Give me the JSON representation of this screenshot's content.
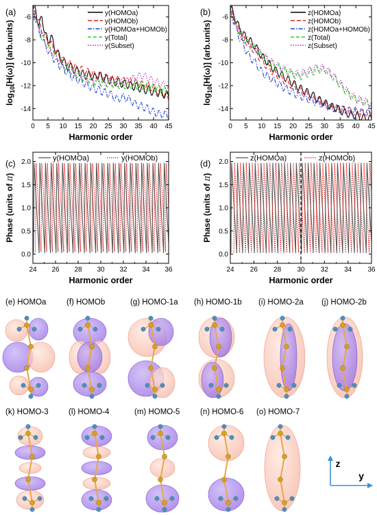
{
  "chart_data": [
    {
      "panel": "(a)",
      "type": "line",
      "xlabel": "Harmonic order",
      "ylabel_main": "log",
      "ylabel_sub": "10",
      "ylabel_tail": "[H(ω)] (arb.units)",
      "xlim": [
        0,
        45
      ],
      "ylim": [
        -15,
        -5
      ],
      "xticks": [
        0,
        5,
        10,
        15,
        20,
        25,
        30,
        35,
        40,
        45
      ],
      "yticks": [
        -14,
        -12,
        -10,
        -8,
        -6
      ],
      "series": [
        {
          "name": "y(HOMOa)",
          "color": "#000000",
          "dash": "",
          "x": [
            0,
            1,
            2,
            3,
            4,
            5,
            6,
            7,
            8,
            9,
            10,
            11,
            12,
            13,
            14,
            15,
            16,
            17,
            18,
            19,
            20,
            21,
            22,
            23,
            24,
            25,
            26,
            27,
            28,
            29,
            30,
            31,
            32,
            33,
            34,
            35,
            36,
            37,
            38,
            39,
            40,
            41,
            42,
            43,
            44,
            45
          ],
          "y": [
            -5,
            -5.5,
            -6.8,
            -6.0,
            -7.4,
            -8.2,
            -7.6,
            -8.6,
            -9.0,
            -9.6,
            -9.8,
            -10.2,
            -10.4,
            -10.3,
            -10.8,
            -10.6,
            -11.0,
            -11.0,
            -11.2,
            -11.0,
            -11.3,
            -11.2,
            -11.0,
            -11.4,
            -11.2,
            -11.6,
            -11.4,
            -11.8,
            -11.5,
            -11.9,
            -11.7,
            -12.0,
            -11.8,
            -12.2,
            -11.9,
            -12.3,
            -12.1,
            -12.5,
            -12.2,
            -12.6,
            -12.4,
            -12.7,
            -12.5,
            -12.8,
            -12.7,
            -13.0
          ]
        },
        {
          "name": "y(HOMOb)",
          "color": "#e11b1b",
          "dash": "6,3",
          "x": [
            0,
            2,
            4,
            6,
            8,
            10,
            12,
            14,
            16,
            18,
            20,
            22,
            24,
            26,
            28,
            30,
            32,
            34,
            36,
            38,
            40,
            42,
            44,
            45
          ],
          "y": [
            -5.2,
            -6.5,
            -7.8,
            -8.4,
            -9.2,
            -9.8,
            -10.1,
            -10.4,
            -10.6,
            -10.8,
            -11.0,
            -11.1,
            -11.3,
            -11.4,
            -11.5,
            -11.6,
            -11.6,
            -11.7,
            -11.9,
            -12.0,
            -12.2,
            -12.6,
            -12.8,
            -13.0
          ]
        },
        {
          "name": "y(HOMOa+HOMOb)",
          "color": "#1f3fd0",
          "dash": "6,2,1.5,2",
          "x": [
            0,
            2,
            4,
            6,
            8,
            10,
            12,
            14,
            16,
            18,
            20,
            22,
            24,
            26,
            28,
            30,
            32,
            34,
            36,
            38,
            40,
            42,
            44,
            45
          ],
          "y": [
            -5.3,
            -7.0,
            -8.5,
            -9.3,
            -10.0,
            -10.5,
            -11.0,
            -11.4,
            -11.6,
            -12.0,
            -12.2,
            -12.4,
            -12.6,
            -12.8,
            -13.2,
            -13.0,
            -13.2,
            -13.6,
            -13.8,
            -14.0,
            -14.3,
            -14.5,
            -14.5,
            -14.6
          ]
        },
        {
          "name": "y(Total)",
          "color": "#21d321",
          "dash": "5,3",
          "x": [
            0,
            2,
            4,
            6,
            8,
            10,
            12,
            14,
            16,
            18,
            20,
            22,
            24,
            26,
            28,
            30,
            32,
            34,
            36,
            38,
            40,
            42,
            44,
            45
          ],
          "y": [
            -5.6,
            -7.2,
            -8.2,
            -9.0,
            -9.6,
            -10.2,
            -10.6,
            -10.9,
            -11.2,
            -11.4,
            -11.6,
            -11.7,
            -11.8,
            -11.8,
            -11.9,
            -12.0,
            -11.9,
            -12.0,
            -12.0,
            -12.1,
            -12.2,
            -12.3,
            -12.4,
            -12.5
          ]
        },
        {
          "name": "y(Subset)",
          "color": "#c51cc5",
          "dash": "1.5,2",
          "x": [
            0,
            2,
            4,
            6,
            8,
            10,
            12,
            14,
            16,
            18,
            20,
            22,
            24,
            26,
            28,
            30,
            32,
            34,
            36,
            38,
            40,
            42,
            44,
            45
          ],
          "y": [
            -5.5,
            -7.1,
            -8.1,
            -8.9,
            -9.5,
            -10.1,
            -10.5,
            -10.8,
            -11.1,
            -11.3,
            -11.5,
            -11.6,
            -11.7,
            -11.7,
            -11.8,
            -11.8,
            -11.5,
            -11.3,
            -11.1,
            -11.3,
            -11.6,
            -11.8,
            -12.0,
            -12.2
          ]
        }
      ]
    },
    {
      "panel": "(b)",
      "type": "line",
      "xlabel": "Harmonic order",
      "ylabel_main": "log",
      "ylabel_sub": "10",
      "ylabel_tail": "[H(ω)] (arb.units)",
      "xlim": [
        0,
        45
      ],
      "ylim": [
        -15,
        -5
      ],
      "xticks": [
        0,
        5,
        10,
        15,
        20,
        25,
        30,
        35,
        40,
        45
      ],
      "yticks": [
        -14,
        -12,
        -10,
        -8,
        -6
      ],
      "series": [
        {
          "name": "z(HOMOa)",
          "color": "#000000",
          "dash": "",
          "x": [
            0,
            2,
            4,
            6,
            8,
            10,
            12,
            14,
            16,
            18,
            20,
            22,
            24,
            26,
            28,
            30,
            32,
            34,
            36,
            38,
            40,
            42,
            44,
            45
          ],
          "y": [
            -5.0,
            -6.5,
            -7.5,
            -8.0,
            -8.6,
            -9.4,
            -10.0,
            -10.6,
            -11.0,
            -11.4,
            -11.8,
            -12.2,
            -12.5,
            -12.8,
            -13.2,
            -13.5,
            -13.8,
            -14.0,
            -14.3,
            -14.5,
            -14.6,
            -14.8,
            -14.9,
            -14.9
          ]
        },
        {
          "name": "z(HOMOb)",
          "color": "#e11b1b",
          "dash": "6,3",
          "x": [
            0,
            2,
            4,
            6,
            8,
            10,
            12,
            14,
            16,
            18,
            20,
            22,
            24,
            26,
            28,
            30,
            32,
            34,
            36,
            38,
            40,
            42,
            44,
            45
          ],
          "y": [
            -5.2,
            -6.8,
            -7.8,
            -8.4,
            -9.0,
            -9.8,
            -10.4,
            -10.9,
            -11.3,
            -11.7,
            -12.0,
            -12.4,
            -12.7,
            -13.0,
            -13.3,
            -13.6,
            -13.9,
            -14.0,
            -14.1,
            -14.3,
            -14.3,
            -14.4,
            -14.5,
            -14.5
          ]
        },
        {
          "name": "z(HOMOa+HOMOb)",
          "color": "#1f3fd0",
          "dash": "6,2,1.5,2",
          "x": [
            0,
            2,
            4,
            6,
            8,
            10,
            12,
            14,
            16,
            18,
            20,
            22,
            24,
            26,
            28,
            30,
            32,
            34,
            36,
            38,
            40,
            42,
            44,
            45
          ],
          "y": [
            -5.4,
            -7.2,
            -8.4,
            -9.4,
            -10.0,
            -10.8,
            -11.2,
            -11.6,
            -12.0,
            -12.3,
            -12.6,
            -12.9,
            -13.1,
            -13.3,
            -13.5,
            -13.7,
            -13.9,
            -14.0,
            -14.1,
            -14.2,
            -14.2,
            -14.3,
            -14.3,
            -14.3
          ]
        },
        {
          "name": "z(Total)",
          "color": "#21d321",
          "dash": "5,3",
          "x": [
            0,
            2,
            4,
            6,
            8,
            10,
            12,
            14,
            16,
            18,
            20,
            22,
            24,
            26,
            28,
            30,
            32,
            34,
            36,
            38,
            40,
            42,
            44,
            45
          ],
          "y": [
            -5.3,
            -6.8,
            -7.8,
            -8.4,
            -8.8,
            -9.4,
            -9.8,
            -10.2,
            -10.5,
            -10.8,
            -11.0,
            -11.2,
            -11.0,
            -10.8,
            -10.6,
            -10.6,
            -11.0,
            -11.6,
            -12.2,
            -12.8,
            -13.2,
            -13.4,
            -13.6,
            -13.6
          ]
        },
        {
          "name": "z(Subset)",
          "color": "#c51cc5",
          "dash": "1.5,2",
          "x": [
            0,
            2,
            4,
            6,
            8,
            10,
            12,
            14,
            16,
            18,
            20,
            22,
            24,
            26,
            28,
            30,
            32,
            34,
            36,
            38,
            40,
            42,
            44,
            45
          ],
          "y": [
            -5.2,
            -6.7,
            -7.7,
            -8.3,
            -8.7,
            -9.3,
            -9.7,
            -10.1,
            -10.4,
            -10.7,
            -10.9,
            -11.0,
            -10.8,
            -10.6,
            -10.4,
            -10.5,
            -10.9,
            -11.5,
            -12.1,
            -12.7,
            -13.1,
            -13.3,
            -13.5,
            -13.6
          ]
        }
      ]
    },
    {
      "panel": "(c)",
      "type": "line",
      "xlabel": "Harmonic order",
      "ylabel": "Phase (units of π)",
      "xlim": [
        24,
        36
      ],
      "ylim": [
        -0.2,
        2.2
      ],
      "xticks": [
        24,
        26,
        28,
        30,
        32,
        34,
        36
      ],
      "xticks_minor": [
        25,
        27,
        29,
        31,
        33,
        35
      ],
      "yticks": [
        0.0,
        0.5,
        1.0,
        1.5,
        2.0
      ],
      "series": [
        {
          "name": "y(HOMOa)",
          "color": "#555555",
          "dash": "",
          "period": 0.5,
          "x0": 24.05,
          "ymin": 0.02,
          "ymax": 1.97
        },
        {
          "name": "y(HOMOb)",
          "color": "#e11b1b",
          "dash": "1.5,1.5",
          "period": 0.5,
          "x0": 24.22,
          "ymin": 0.05,
          "ymax": 1.96
        }
      ]
    },
    {
      "panel": "(d)",
      "type": "line",
      "xlabel": "Harmonic order",
      "ylabel": "Phase (units of π)",
      "xlim": [
        24,
        36
      ],
      "ylim": [
        -0.2,
        2.2
      ],
      "xticks": [
        24,
        26,
        28,
        30,
        32,
        34,
        36
      ],
      "xticks_minor": [
        25,
        27,
        29,
        31,
        33,
        35
      ],
      "yticks": [
        0.0,
        0.5,
        1.0,
        1.5,
        2.0
      ],
      "vline": 30,
      "series": [
        {
          "name": "z(HOMOa)",
          "color": "#555555",
          "dash": "",
          "period": 0.5,
          "x0": 24.05,
          "ymin": 0.02,
          "ymax": 1.97
        },
        {
          "name": "z(HOMOb)",
          "color": "#e11b1b",
          "dash": "1.5,1.5",
          "period": 0.5,
          "x0": 24.3,
          "ymin": 0.03,
          "ymax": 1.97
        }
      ]
    }
  ],
  "orbitals": {
    "row1": [
      {
        "tag": "(e)",
        "name": "HOMOa",
        "shape": "p4"
      },
      {
        "tag": "(f)",
        "name": "HOMOb",
        "shape": "p4b"
      },
      {
        "tag": "(g)",
        "name": "HOMO-1a",
        "shape": "p2"
      },
      {
        "tag": "(h)",
        "name": "HOMO-1b",
        "shape": "p2b"
      },
      {
        "tag": "(i)",
        "name": "HOMO-2a",
        "shape": "s1"
      },
      {
        "tag": "(j)",
        "name": "HOMO-2b",
        "shape": "p1b"
      }
    ],
    "row2": [
      {
        "tag": "(k)",
        "name": "HOMO-3",
        "shape": "b6"
      },
      {
        "tag": "(l)",
        "name": "HOMO-4",
        "shape": "b5"
      },
      {
        "tag": "(m)",
        "name": "HOMO-5",
        "shape": "b3"
      },
      {
        "tag": "(n)",
        "name": "HOMO-6",
        "shape": "b2"
      },
      {
        "tag": "(o)",
        "name": "HOMO-7",
        "shape": "s2"
      }
    ],
    "axes_label_z": "z",
    "axes_label_y": "y",
    "colors": {
      "pink": "#f6b8a6",
      "purple": "#9c73e6",
      "atom_c": "#d9a020",
      "atom_h": "#4f8fbf",
      "bond": "#e8a64a"
    }
  }
}
